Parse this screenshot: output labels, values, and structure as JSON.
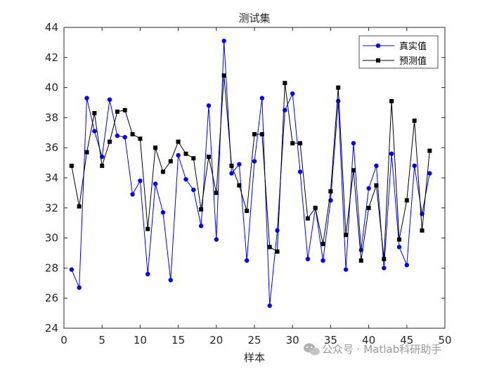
{
  "chart_data": {
    "type": "line",
    "title": "测试集",
    "xlabel": "样本",
    "ylabel": "",
    "xlim": [
      0,
      50
    ],
    "ylim": [
      24,
      44
    ],
    "xticks": [
      0,
      5,
      10,
      15,
      20,
      25,
      30,
      35,
      40,
      45,
      50
    ],
    "yticks": [
      24,
      26,
      28,
      30,
      32,
      34,
      36,
      38,
      40,
      42,
      44
    ],
    "grid": false,
    "legend_position": "top-right",
    "x": [
      1,
      2,
      3,
      4,
      5,
      6,
      7,
      8,
      9,
      10,
      11,
      12,
      13,
      14,
      15,
      16,
      17,
      18,
      19,
      20,
      21,
      22,
      23,
      24,
      25,
      26,
      27,
      28,
      29,
      30,
      31,
      32,
      33,
      34,
      35,
      36,
      37,
      38,
      39,
      40,
      41,
      42,
      43,
      44,
      45,
      46,
      47,
      48
    ],
    "series": [
      {
        "name": "真实值",
        "color": "#0000ff",
        "marker": "circle",
        "values": [
          27.9,
          26.7,
          39.3,
          37.1,
          35.4,
          39.2,
          36.8,
          36.7,
          32.9,
          33.8,
          27.6,
          33.6,
          31.7,
          27.2,
          35.5,
          33.9,
          33.2,
          30.8,
          38.8,
          29.9,
          43.1,
          34.3,
          34.9,
          28.5,
          35.1,
          39.3,
          25.5,
          30.5,
          38.5,
          39.6,
          34.4,
          28.6,
          32.0,
          28.5,
          32.5,
          39.1,
          27.9,
          36.3,
          29.2,
          33.3,
          34.8,
          28.0,
          35.6,
          29.4,
          28.2,
          34.8,
          31.6,
          34.3
        ]
      },
      {
        "name": "预测值",
        "color": "#000000",
        "marker": "square",
        "values": [
          34.8,
          32.1,
          35.7,
          38.3,
          34.8,
          36.4,
          38.4,
          38.5,
          36.9,
          36.6,
          30.6,
          36.0,
          34.4,
          35.1,
          36.4,
          35.6,
          35.3,
          31.9,
          35.4,
          33.0,
          40.8,
          34.8,
          33.5,
          31.8,
          36.9,
          36.9,
          29.4,
          29.1,
          40.3,
          36.3,
          36.3,
          31.3,
          32.0,
          29.6,
          33.1,
          40.0,
          30.2,
          34.5,
          28.5,
          32.0,
          33.5,
          28.6,
          39.1,
          29.9,
          32.5,
          37.8,
          30.5,
          35.8
        ]
      }
    ]
  },
  "watermark": "公众号 · Matlab科研助手"
}
